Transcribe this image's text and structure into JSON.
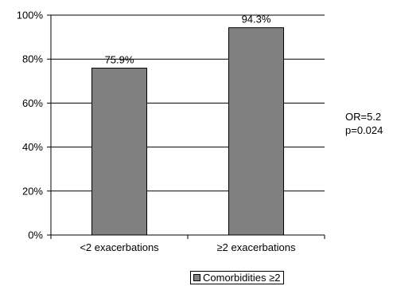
{
  "chart_data": {
    "type": "bar",
    "categories": [
      "<2 exacerbations",
      "≥2 exacerbations"
    ],
    "series": [
      {
        "name": "Comorbidities ≥2",
        "values": [
          75.9,
          94.3
        ]
      }
    ],
    "value_labels": [
      "75.9%",
      "94.3%"
    ],
    "yticks": [
      "0%",
      "20%",
      "40%",
      "60%",
      "80%",
      "100%"
    ],
    "ylim": [
      0,
      100
    ],
    "grid": true,
    "legend": "bottom",
    "bar_color": "#808080",
    "annotations": {
      "or": "OR=5.2",
      "p": "p=0.024"
    }
  }
}
